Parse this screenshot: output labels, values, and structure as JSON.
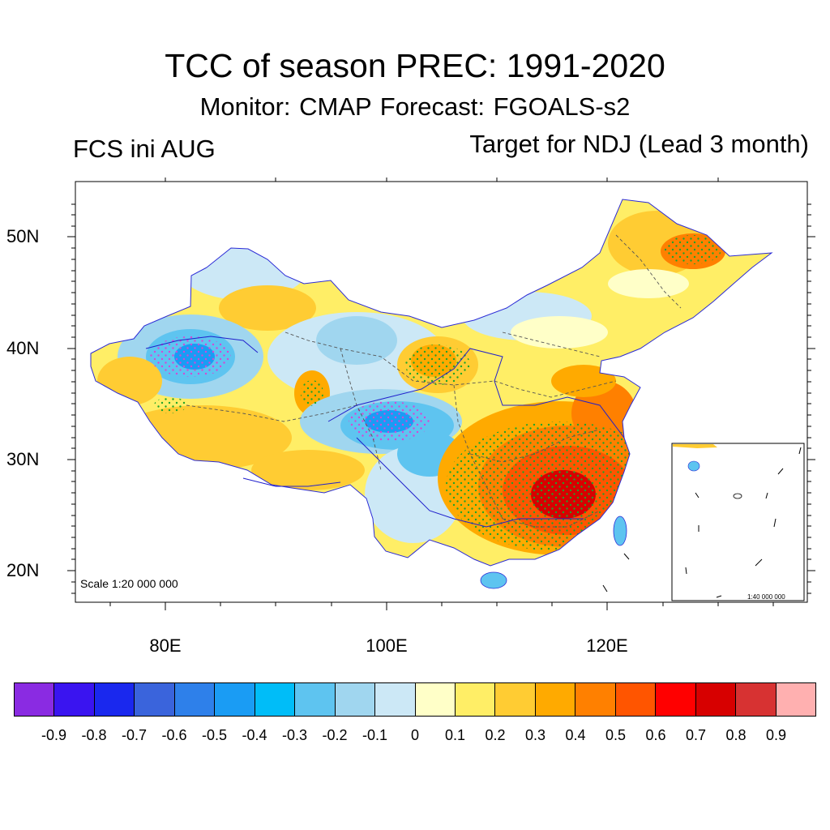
{
  "header": {
    "title": "TCC of season PREC: 1991-2020",
    "subtitle": "Monitor: CMAP   Forecast: FGOALS-s2",
    "left_label": "FCS ini AUG",
    "right_label": "Target for NDJ (Lead 3 month)"
  },
  "map": {
    "lat_labels": [
      "50N",
      "40N",
      "30N",
      "20N"
    ],
    "lon_labels": [
      "80E",
      "100E",
      "120E"
    ],
    "scale_text": "Scale 1:20 000 000",
    "inset_scale_text": "1:40 000 000"
  },
  "colorbar": {
    "colors": [
      "#8a2be2",
      "#3a14f0",
      "#1a28ee",
      "#3a64dc",
      "#2e80ea",
      "#1a9cf4",
      "#00bdf8",
      "#5ec4f0",
      "#a0d6ef",
      "#cce8f6",
      "#ffffc8",
      "#ffee66",
      "#ffcc33",
      "#ffaa00",
      "#ff8000",
      "#ff5500",
      "#ff0000",
      "#d70000",
      "#d73232",
      "#ffb0b0"
    ],
    "labels": [
      "-0.9",
      "-0.8",
      "-0.7",
      "-0.6",
      "-0.5",
      "-0.4",
      "-0.3",
      "-0.2",
      "-0.1",
      "0",
      "0.1",
      "0.2",
      "0.3",
      "0.4",
      "0.5",
      "0.6",
      "0.7",
      "0.8",
      "0.9"
    ]
  }
}
